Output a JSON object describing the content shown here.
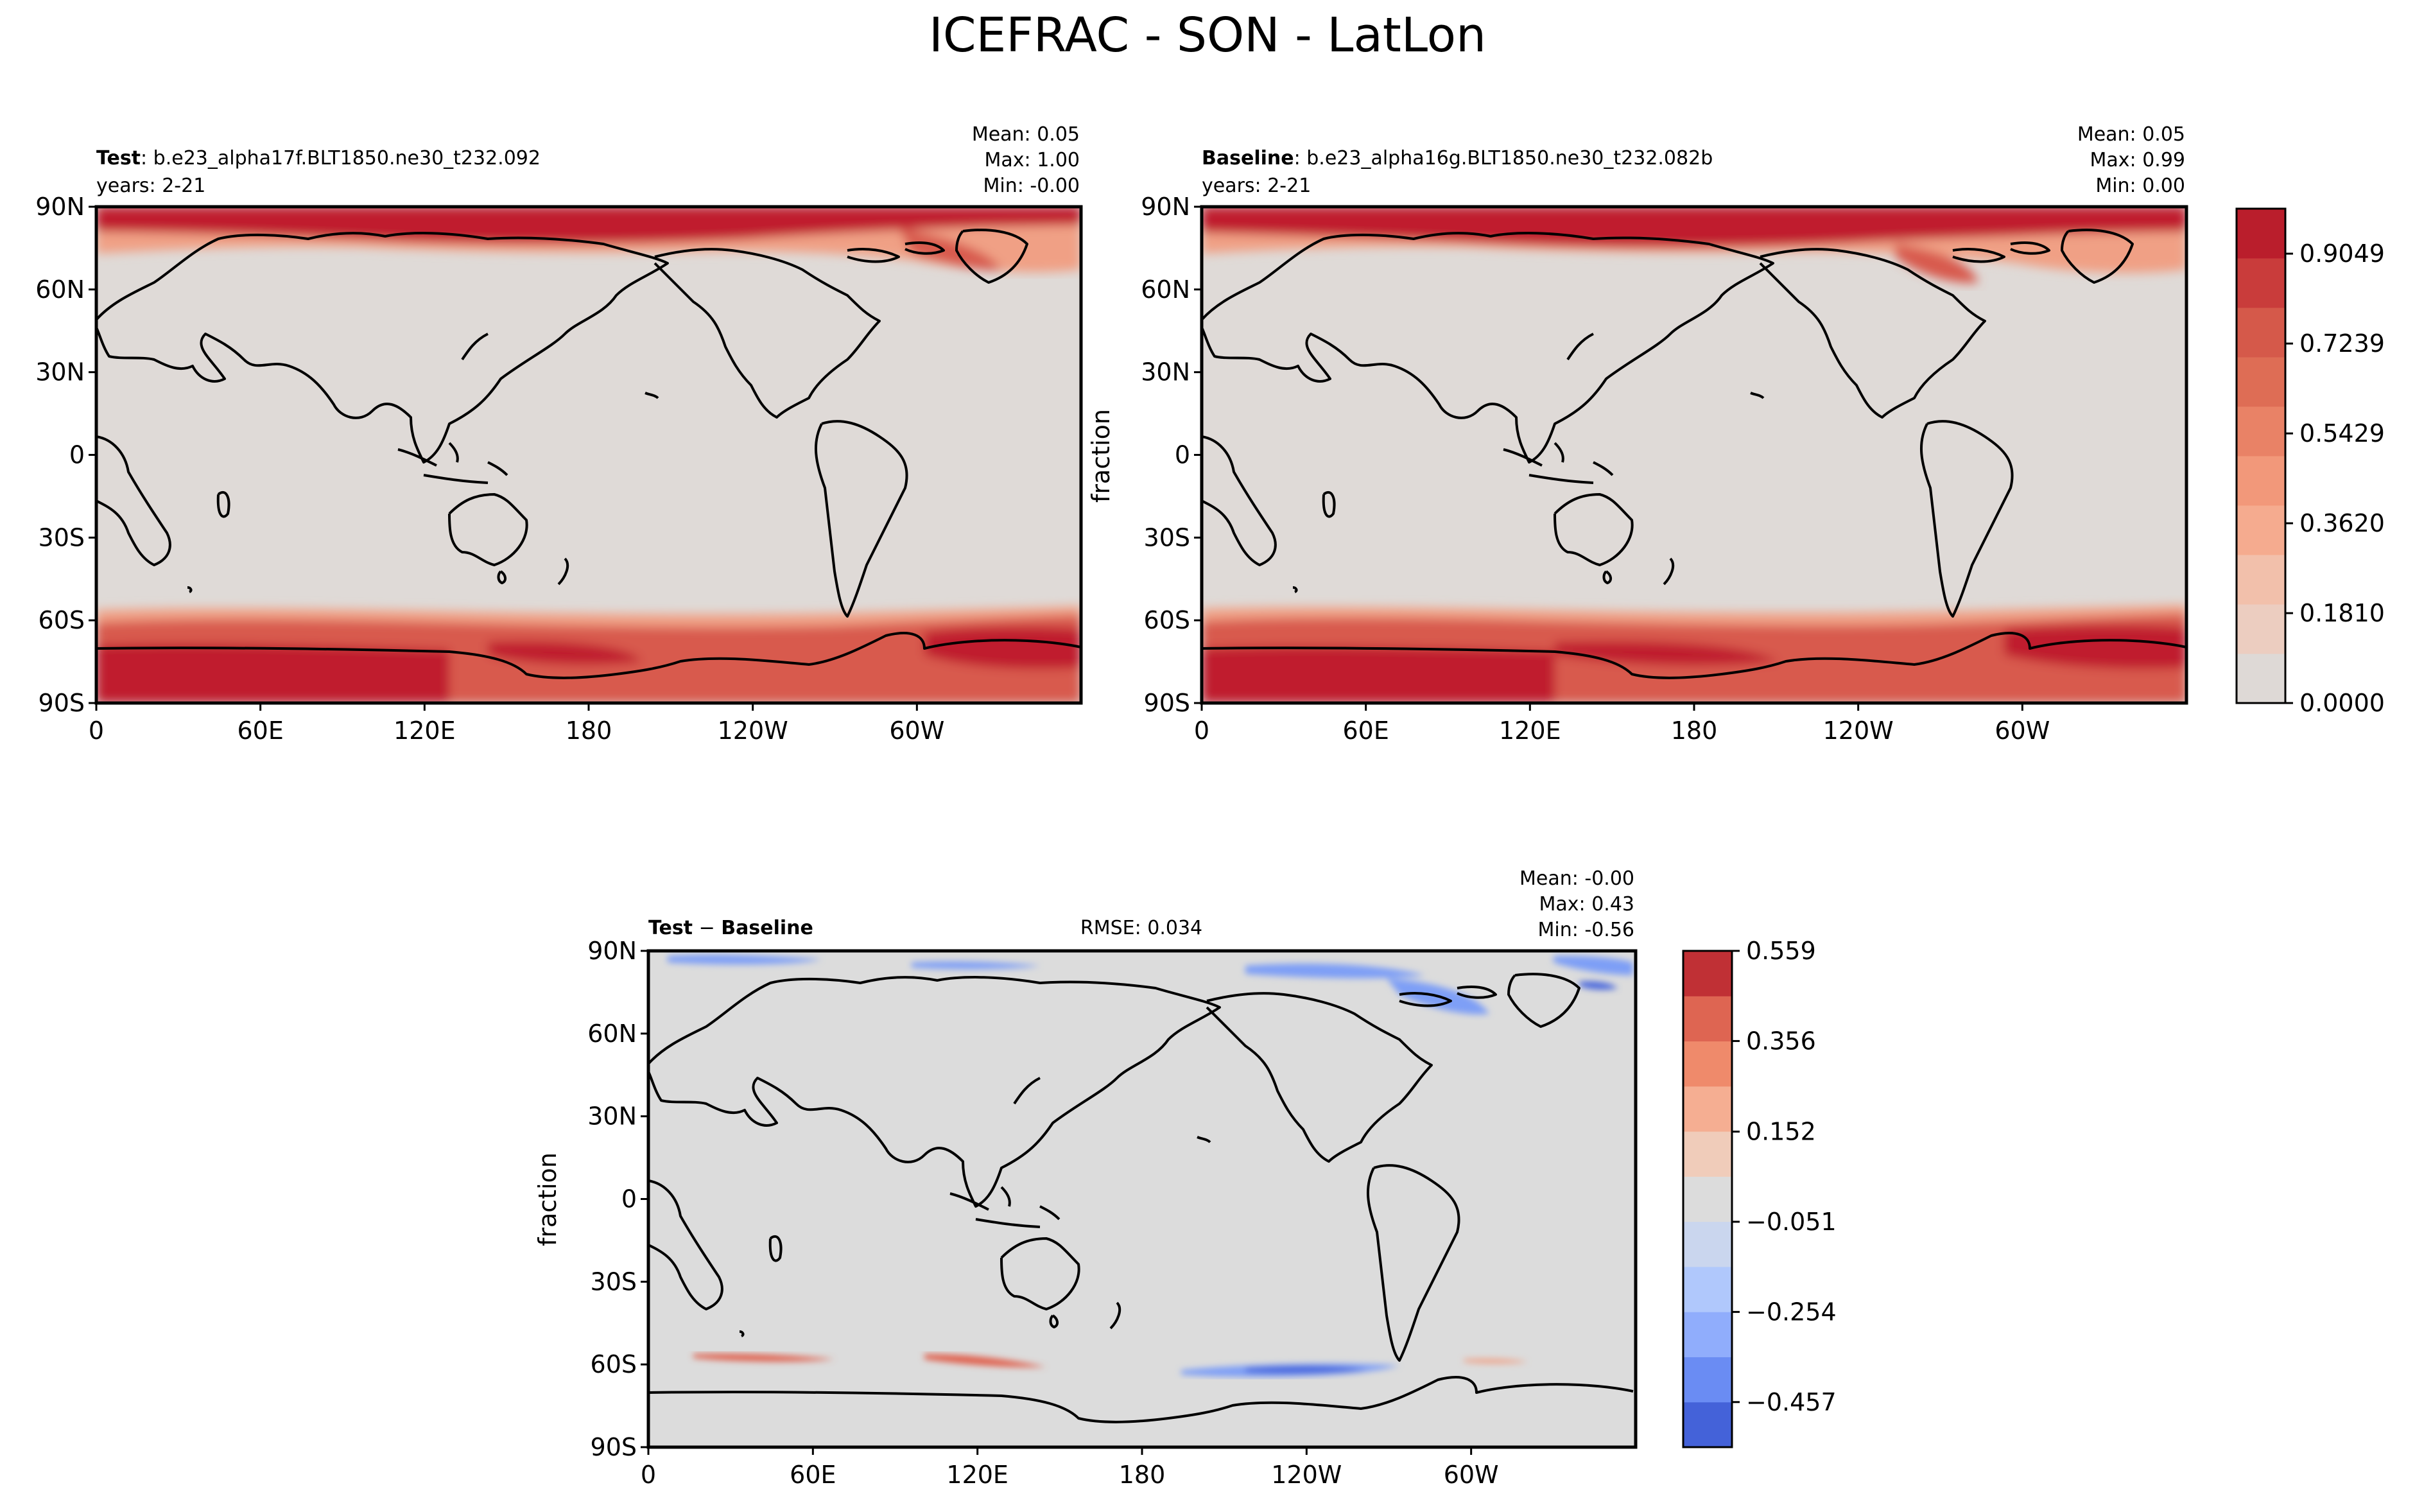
{
  "title": "ICEFRAC - SON - LatLon",
  "lat_ticks": [
    "90N",
    "60N",
    "30N",
    "0",
    "30S",
    "60S",
    "90S"
  ],
  "lon_ticks": [
    "0",
    "60E",
    "120E",
    "180",
    "120W",
    "60W"
  ],
  "panels": {
    "test": {
      "label_bold": "Test",
      "label_rest": ": b.e23_alpha17f.BLT1850.ne30_t232.092",
      "years": "years: 2-21",
      "stats": [
        "Mean:  0.05",
        "Max:  1.00",
        "Min: -0.00"
      ]
    },
    "baseline": {
      "label_bold": "Baseline",
      "label_rest": ": b.e23_alpha16g.BLT1850.ne30_t232.082b",
      "years": "years: 2-21",
      "stats": [
        "Mean:  0.05",
        "Max:  0.99",
        "Min:  0.00"
      ],
      "ylabel": "fraction"
    },
    "diff": {
      "label_bold": "Test",
      "label_minus": " − ",
      "label_bold2": "Baseline",
      "rmse": "RMSE: 0.034",
      "stats": [
        "Mean: -0.00",
        "Max:  0.43",
        "Min: -0.56"
      ],
      "ylabel": "fraction"
    }
  },
  "colorbar_main": {
    "ticks": [
      "0.9049",
      "0.7239",
      "0.5429",
      "0.3620",
      "0.1810",
      "0.0000"
    ],
    "colors": [
      "#ded9d6",
      "#eccdc0",
      "#f2c0ab",
      "#f5ab8f",
      "#f2987a",
      "#e98266",
      "#de6d55",
      "#d5594a",
      "#c93c3b",
      "#ba1e2c"
    ]
  },
  "colorbar_diff": {
    "ticks": [
      "0.559",
      "0.356",
      "0.152",
      "−0.051",
      "−0.254",
      "−0.457"
    ],
    "colors": [
      "#4462d9",
      "#6a8cf3",
      "#90adfc",
      "#b0c8fc",
      "#cad6ee",
      "#dcdcdc",
      "#f0ccba",
      "#f5ae92",
      "#ef8a6b",
      "#de6552",
      "#c03035"
    ]
  },
  "colors": {
    "land_bg": "#dfdad7",
    "diff_bg": "#dcdcdc",
    "ice_dark": "#c01f2e",
    "ice_mid": "#d85a4d",
    "ice_light": "#f0a085",
    "diff_blue": "#7e9ff6",
    "diff_blue_dark": "#4a68dd",
    "diff_red": "#e0614d"
  },
  "chart_data": [
    {
      "type": "heatmap",
      "name": "Test",
      "x_range": [
        0,
        360
      ],
      "y_range": [
        -90,
        90
      ],
      "zmin": 0.0,
      "zmax": 1.0,
      "mean": 0.05,
      "max": 1.0,
      "min": -0.0,
      "colorbar_levels": [
        0.0,
        0.181,
        0.362,
        0.5429,
        0.7239,
        0.9049
      ]
    },
    {
      "type": "heatmap",
      "name": "Baseline",
      "x_range": [
        0,
        360
      ],
      "y_range": [
        -90,
        90
      ],
      "zmin": 0.0,
      "zmax": 0.99,
      "mean": 0.05,
      "max": 0.99,
      "min": 0.0,
      "colorbar_levels": [
        0.0,
        0.181,
        0.362,
        0.5429,
        0.7239,
        0.9049
      ]
    },
    {
      "type": "heatmap",
      "name": "Test - Baseline",
      "x_range": [
        0,
        360
      ],
      "y_range": [
        -90,
        90
      ],
      "zmin": -0.56,
      "zmax": 0.43,
      "mean": -0.0,
      "max": 0.43,
      "min": -0.56,
      "rmse": 0.034,
      "colorbar_levels": [
        -0.457,
        -0.254,
        -0.051,
        0.152,
        0.356,
        0.559
      ]
    }
  ]
}
